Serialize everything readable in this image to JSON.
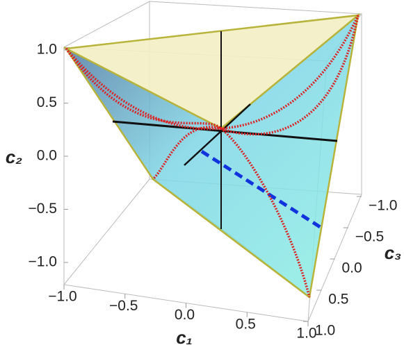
{
  "chart_data": {
    "type": "surface3d",
    "xlabel": "c₁",
    "ylabel": "c₂",
    "zlabel": "c₃",
    "xlim": [
      -1,
      1
    ],
    "ylim": [
      -1,
      1
    ],
    "zlim": [
      -1,
      1
    ],
    "xticks": [
      {
        "value": -1,
        "label": "−1.0"
      },
      {
        "value": -0.5,
        "label": "−0.5"
      },
      {
        "value": 0,
        "label": "0.0"
      },
      {
        "value": 0.5,
        "label": "0.5"
      },
      {
        "value": 1,
        "label": "1.0"
      }
    ],
    "yticks": [
      {
        "value": -1,
        "label": "−1.0"
      },
      {
        "value": -0.5,
        "label": "−0.5"
      },
      {
        "value": 0,
        "label": "0.0"
      },
      {
        "value": 0.5,
        "label": "0.5"
      },
      {
        "value": 1,
        "label": "1.0"
      }
    ],
    "zticks": [
      {
        "value": -1,
        "label": "−1.0"
      },
      {
        "value": -0.5,
        "label": "−0.5"
      },
      {
        "value": 0,
        "label": "0.0"
      },
      {
        "value": 0.5,
        "label": "0.5"
      },
      {
        "value": 1,
        "label": "1.0"
      }
    ]
  }
}
